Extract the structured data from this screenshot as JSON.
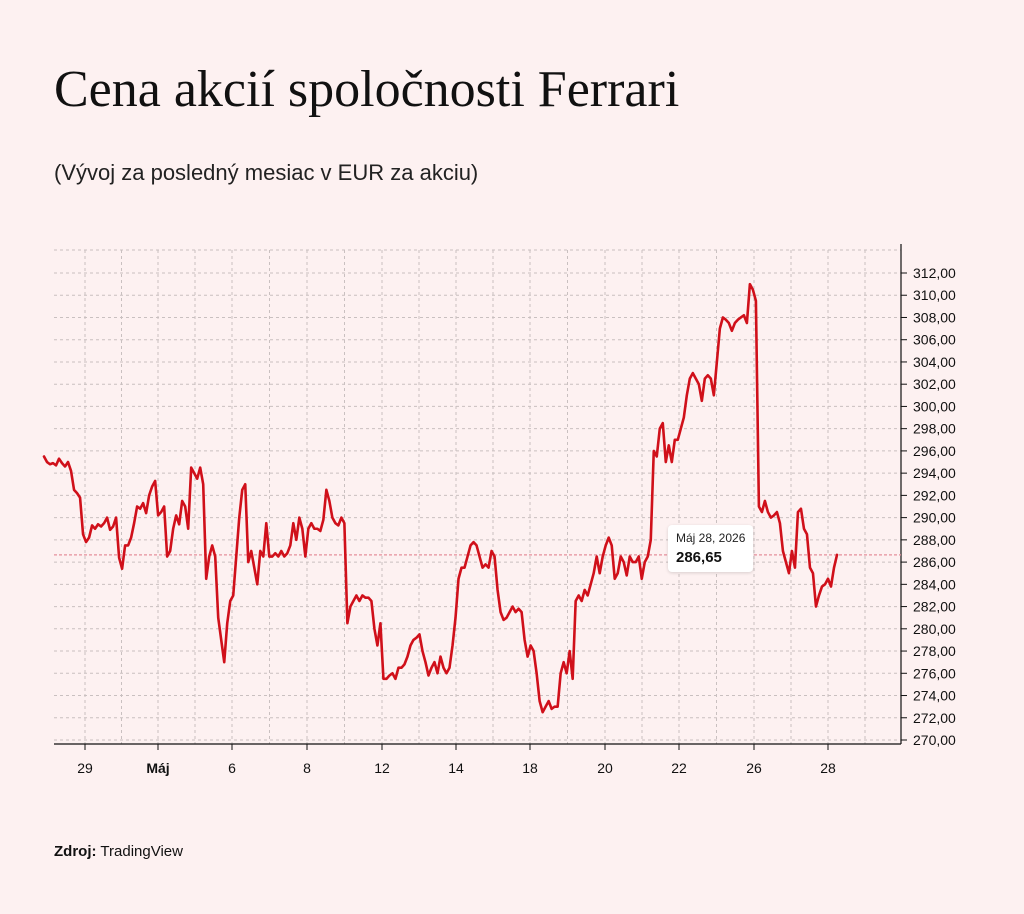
{
  "title": "Cena akcií spoločnosti Ferrari",
  "subtitle": "(Vývoj za posledný mesiac v EUR za akciu)",
  "source": {
    "label": "Zdroj:",
    "value": "TradingView"
  },
  "tooltip": {
    "date": "Máj 28, 2026",
    "value": "286,65"
  },
  "colors": {
    "line": "#d0101a",
    "background": "#fdf1f1",
    "grid": "#c9c0c0",
    "reference": "#e58f9c"
  },
  "chart_data": {
    "type": "line",
    "title": "Cena akcií spoločnosti Ferrari",
    "subtitle": "(Vývoj za posledný mesiac v EUR za akciu)",
    "xlabel": "",
    "ylabel": "",
    "ylim": [
      270,
      312
    ],
    "y_ticks": [
      270,
      272,
      274,
      276,
      278,
      280,
      282,
      284,
      286,
      288,
      290,
      292,
      294,
      296,
      298,
      300,
      302,
      304,
      306,
      308,
      310,
      312
    ],
    "y_tick_labels": [
      "270,00",
      "272,00",
      "274,00",
      "276,00",
      "278,00",
      "280,00",
      "282,00",
      "284,00",
      "286,00",
      "288,00",
      "290,00",
      "292,00",
      "294,00",
      "296,00",
      "298,00",
      "300,00",
      "302,00",
      "304,00",
      "306,00",
      "308,00",
      "310,00",
      "312,00"
    ],
    "x_tick_labels": [
      {
        "label": "29",
        "bold": false
      },
      {
        "label": "Máj",
        "bold": true
      },
      {
        "label": "6",
        "bold": false
      },
      {
        "label": "8",
        "bold": false
      },
      {
        "label": "12",
        "bold": false
      },
      {
        "label": "14",
        "bold": false
      },
      {
        "label": "18",
        "bold": false
      },
      {
        "label": "20",
        "bold": false
      },
      {
        "label": "22",
        "bold": false
      },
      {
        "label": "26",
        "bold": false
      },
      {
        "label": "28",
        "bold": false
      }
    ],
    "grid": true,
    "reference_value": 286.65,
    "series": [
      {
        "values": [
          295.5,
          295.0,
          294.8,
          294.9,
          294.7,
          295.3,
          294.9,
          294.6,
          295.0,
          294.2,
          292.5,
          292.2,
          291.8,
          288.5,
          287.8,
          288.2,
          289.3,
          289.0,
          289.4,
          289.2,
          289.5,
          290.0,
          288.9,
          289.2,
          290.0,
          286.4,
          285.4,
          287.5,
          287.5,
          288.2,
          289.5,
          291.0,
          290.8,
          291.3,
          290.4,
          292.0,
          292.8,
          293.3,
          290.2,
          290.5,
          291.0,
          286.5,
          287.0,
          289.0,
          290.2,
          289.4,
          291.5,
          291.0,
          289.0,
          294.5,
          294.0,
          293.5,
          294.5,
          293.0,
          284.5,
          286.5,
          287.5,
          286.5,
          281.0,
          279.0,
          277.0,
          280.5,
          282.5,
          283.0,
          286.5,
          290.0,
          292.5,
          293.0,
          286.0,
          287.0,
          285.5,
          284.0,
          287.0,
          286.5,
          289.5,
          286.5,
          286.5,
          286.8,
          286.5,
          287.0,
          286.5,
          286.8,
          287.5,
          289.5,
          288.0,
          290.0,
          289.0,
          286.5,
          289.0,
          289.5,
          289.0,
          289.0,
          288.8,
          289.8,
          292.5,
          291.5,
          290.0,
          289.5,
          289.3,
          290.0,
          289.5,
          280.5,
          282.0,
          282.5,
          283.0,
          282.5,
          283.0,
          282.8,
          282.8,
          282.5,
          280.0,
          278.5,
          280.5,
          275.5,
          275.5,
          275.8,
          276.0,
          275.5,
          276.5,
          276.5,
          276.8,
          277.5,
          278.5,
          279.0,
          279.2,
          279.5,
          278.0,
          277.0,
          275.8,
          276.5,
          277.0,
          276.0,
          277.5,
          276.5,
          276.0,
          276.5,
          278.5,
          281.0,
          284.5,
          285.5,
          285.5,
          286.5,
          287.5,
          287.8,
          287.5,
          286.5,
          285.5,
          285.8,
          285.5,
          287.0,
          286.5,
          283.5,
          281.5,
          280.8,
          281.0,
          281.5,
          282.0,
          281.5,
          281.8,
          281.5,
          279.0,
          277.5,
          278.5,
          278.0,
          276.0,
          273.5,
          272.5,
          273.0,
          273.5,
          272.8,
          273.0,
          273.0,
          276.0,
          277.0,
          276.0,
          278.0,
          275.5,
          282.5,
          283.0,
          282.5,
          283.5,
          283.0,
          284.0,
          285.0,
          286.5,
          285.0,
          286.5,
          287.5,
          288.2,
          287.5,
          284.5,
          285.0,
          286.5,
          286.0,
          284.8,
          286.5,
          286.0,
          286.0,
          286.5,
          284.5,
          286.0,
          286.5,
          288.0,
          296.0,
          295.5,
          298.0,
          298.5,
          295.0,
          296.5,
          295.0,
          297.0,
          297.0,
          298.0,
          299.0,
          301.0,
          302.5,
          303.0,
          302.5,
          302.0,
          300.5,
          302.5,
          302.8,
          302.5,
          301.0,
          304.0,
          307.0,
          308.0,
          307.8,
          307.5,
          306.8,
          307.5,
          307.8,
          308.0,
          308.2,
          307.5,
          311.0,
          310.5,
          309.5,
          291.0,
          290.5,
          291.5,
          290.5,
          290.0,
          290.2,
          290.5,
          289.5,
          287.0,
          286.0,
          285.0,
          287.0,
          285.5,
          290.5,
          290.8,
          289.0,
          288.5,
          285.5,
          285.0,
          282.0,
          283.0,
          283.8,
          284.0,
          284.5,
          283.8,
          285.5,
          286.65
        ]
      }
    ]
  }
}
